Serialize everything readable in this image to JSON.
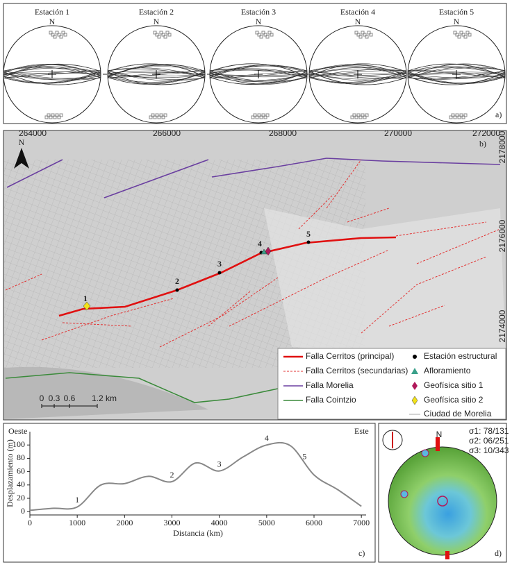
{
  "panel_a": {
    "label": "a)",
    "north": "N",
    "stations": [
      "Estación 1",
      "Estación 2",
      "Estación 3",
      "Estación 4",
      "Estación 5"
    ]
  },
  "panel_b": {
    "label": "b)",
    "north": "N",
    "x_labels": [
      "264000",
      "266000",
      "268000",
      "270000",
      "272000"
    ],
    "y_labels": [
      "2178000",
      "2176000",
      "2174000"
    ],
    "station_labels": [
      "1",
      "2",
      "3",
      "4",
      "5"
    ],
    "scale_labels": [
      "0",
      "0.3",
      "0.6",
      "1.2 km"
    ],
    "legend": [
      "Falla Cerritos (principal)",
      "Falla Cerritos (secundarias)",
      "Falla Morelia",
      "Falla Cointzio",
      "Estación estructural",
      "Afloramiento",
      "Geofísica sitio 1",
      "Geofísica sitio 2",
      "Ciudad de Morelia"
    ]
  },
  "chart_data": {
    "type": "line",
    "xlabel": "Distancia (km)",
    "ylabel": "Desplazamiento (m)",
    "west_label": "Oeste",
    "east_label": "Este",
    "panel_label": "c)",
    "x": [
      0,
      500,
      1000,
      1500,
      2000,
      2500,
      3000,
      3500,
      4000,
      4500,
      5000,
      5500,
      6000,
      6500,
      7000
    ],
    "values": [
      2,
      5,
      7,
      40,
      42,
      53,
      45,
      73,
      61,
      82,
      100,
      99,
      55,
      33,
      8
    ],
    "color": "#888888",
    "annotations": [
      {
        "text": "1",
        "x": 1000
      },
      {
        "text": "2",
        "x": 3000
      },
      {
        "text": "3",
        "x": 4000
      },
      {
        "text": "4",
        "x": 5000
      },
      {
        "text": "5",
        "x": 5800
      }
    ],
    "xlim": [
      0,
      7100
    ],
    "ylim": [
      -5,
      120
    ],
    "xticks": [
      0,
      1000,
      2000,
      3000,
      4000,
      5000,
      6000,
      7000
    ],
    "yticks": [
      0,
      20,
      40,
      60,
      80,
      100
    ]
  },
  "panel_d": {
    "label": "d)",
    "north": "N",
    "legend": [
      "σ1: 78/131",
      "σ2: 06/251",
      "σ3: 10/343"
    ]
  }
}
